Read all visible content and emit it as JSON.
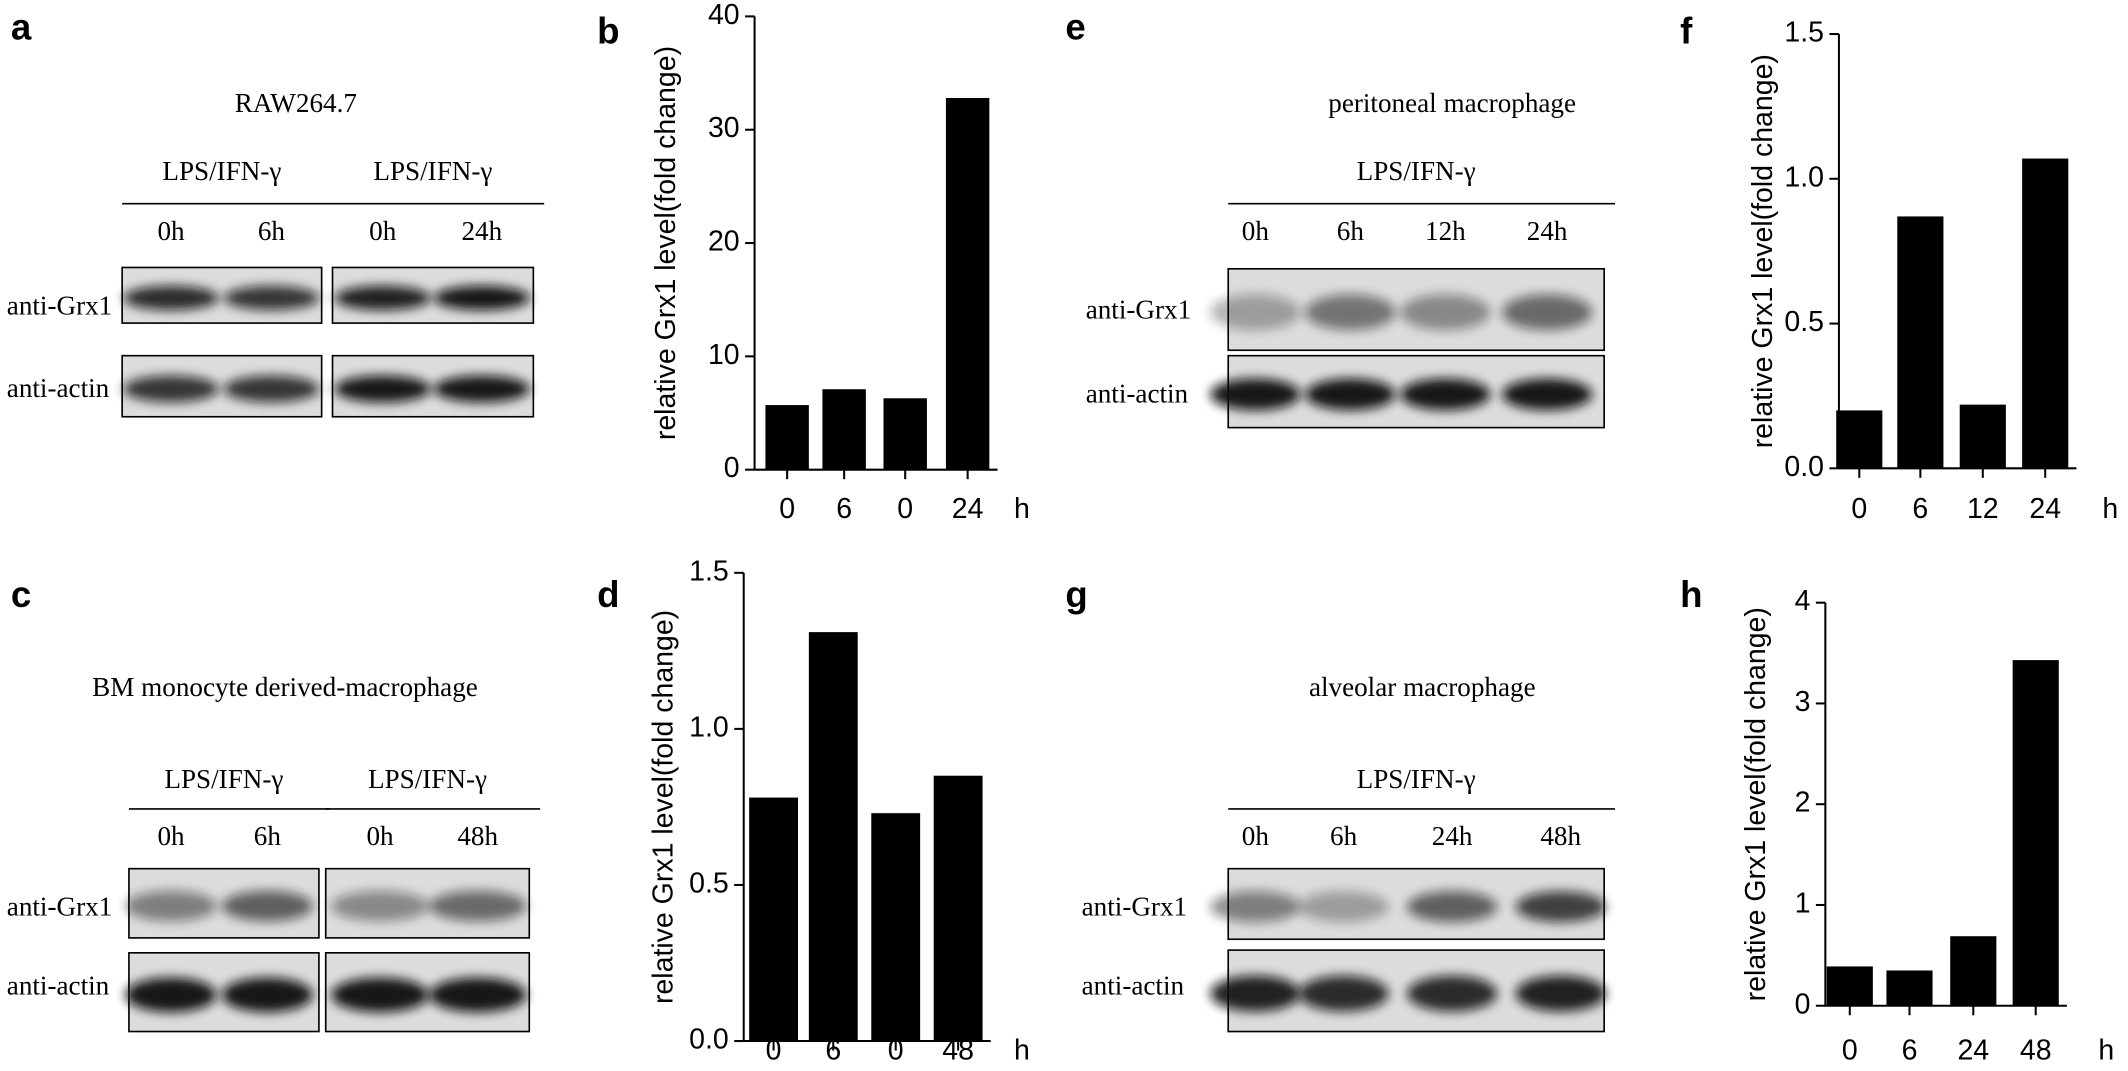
{
  "blots": [
    {
      "letter": "a",
      "title": "RAW264.7",
      "groups": [
        {
          "label": "LPS/IFN-γ",
          "lanes": [
            "0h",
            "6h"
          ]
        },
        {
          "label": "LPS/IFN-γ",
          "lanes": [
            "0h",
            "24h"
          ]
        }
      ],
      "rows": [
        "anti-Grx1",
        "anti-actin"
      ]
    },
    {
      "letter": "c",
      "title": "BM monocyte derived-macrophage",
      "groups": [
        {
          "label": "LPS/IFN-γ",
          "lanes": [
            "0h",
            "6h"
          ]
        },
        {
          "label": "LPS/IFN-γ",
          "lanes": [
            "0h",
            "48h"
          ]
        }
      ],
      "rows": [
        "anti-Grx1",
        "anti-actin"
      ]
    },
    {
      "letter": "e",
      "title": "peritoneal macrophage",
      "groups": [
        {
          "label": "LPS/IFN-γ",
          "lanes": [
            "0h",
            "6h",
            "12h",
            "24h"
          ]
        }
      ],
      "rows": [
        "anti-Grx1",
        "anti-actin"
      ]
    },
    {
      "letter": "g",
      "title": "alveolar macrophage",
      "groups": [
        {
          "label": "LPS/IFN-γ",
          "lanes": [
            "0h",
            "6h",
            "24h",
            "48h"
          ]
        }
      ],
      "rows": [
        "anti-Grx1",
        "anti-actin"
      ]
    }
  ],
  "chart_data": [
    {
      "type": "bar",
      "letter": "b",
      "y_label": "relative Grx1 level(fold change)",
      "x_unit": "h",
      "categories": [
        "0",
        "6",
        "0",
        "24"
      ],
      "values": [
        5.7,
        7.1,
        6.3,
        32.8
      ],
      "color": "#000000",
      "ylim": [
        0,
        40
      ],
      "yticks": [
        0,
        10,
        20,
        30,
        40
      ]
    },
    {
      "type": "bar",
      "letter": "d",
      "y_label": "relative Grx1 level(fold change)",
      "x_unit": "h",
      "categories": [
        "0",
        "6",
        "0",
        "48"
      ],
      "values": [
        0.78,
        1.31,
        0.73,
        0.85
      ],
      "color": "#000000",
      "ylim": [
        0,
        1.5
      ],
      "yticks": [
        {
          "value": 0,
          "label": "0.0"
        },
        {
          "value": 0.5,
          "label": "0.5"
        },
        {
          "value": 1,
          "label": "1.0"
        },
        {
          "value": 1.5,
          "label": "1.5"
        }
      ]
    },
    {
      "type": "bar",
      "letter": "f",
      "y_label": "relative Grx1 level(fold change)",
      "x_unit": "h",
      "categories": [
        "0",
        "6",
        "12",
        "24"
      ],
      "values": [
        0.2,
        0.87,
        0.22,
        1.07
      ],
      "color": "#000000",
      "ylim": [
        0,
        1.5
      ],
      "yticks": [
        {
          "value": 0,
          "label": "0.0"
        },
        {
          "value": 0.5,
          "label": "0.5"
        },
        {
          "value": 1,
          "label": "1.0"
        },
        {
          "value": 1.5,
          "label": "1.5"
        }
      ]
    },
    {
      "type": "bar",
      "letter": "h",
      "y_label": "relative Grx1 level(fold change)",
      "x_unit": "h",
      "categories": [
        "0",
        "6",
        "24",
        "48"
      ],
      "values": [
        0.39,
        0.35,
        0.69,
        3.43
      ],
      "color": "#000000",
      "ylim": [
        0,
        4
      ],
      "yticks": [
        0,
        1,
        2,
        3,
        4
      ]
    }
  ]
}
